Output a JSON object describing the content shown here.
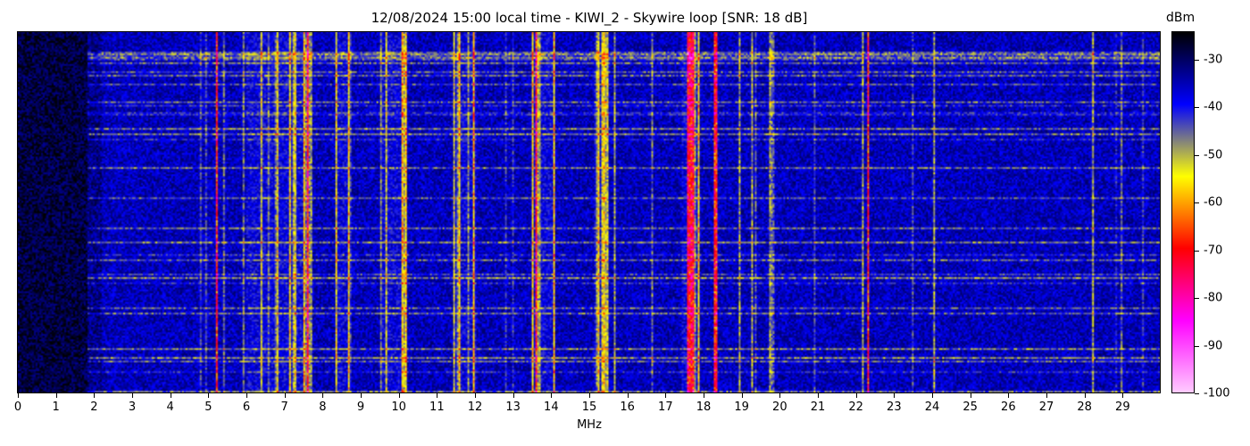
{
  "chart_data": {
    "type": "heatmap",
    "title": "12/08/2024 15:00 local time - KIWI_2 - Skywire loop [SNR: 18 dB]",
    "xlabel": "MHz",
    "xlim": [
      0,
      30
    ],
    "x_ticks": [
      "0",
      "1",
      "2",
      "3",
      "4",
      "5",
      "6",
      "7",
      "8",
      "9",
      "10",
      "11",
      "12",
      "13",
      "14",
      "15",
      "16",
      "17",
      "18",
      "19",
      "20",
      "21",
      "22",
      "23",
      "24",
      "25",
      "26",
      "27",
      "28",
      "29"
    ],
    "colorbar": {
      "label": "dBm",
      "range": [
        -100,
        -24
      ],
      "ticks": [
        "-30",
        "-40",
        "-50",
        "-60",
        "-70",
        "-80",
        "-90",
        "-100"
      ],
      "tick_values": [
        -30,
        -40,
        -50,
        -60,
        -70,
        -80,
        -90,
        -100
      ],
      "colors": [
        "#000000",
        "#0000ff",
        "#ffff00",
        "#ff0000",
        "#ff00ff",
        "#ffccff"
      ]
    },
    "strong_carriers_mhz": [
      5.2,
      7.6,
      13.6,
      17.6,
      17.7,
      18.3,
      22.3
    ],
    "active_bands_mhz": [
      [
        6.0,
        7.7
      ],
      [
        8.3,
        8.7
      ],
      [
        9.5,
        10.2
      ],
      [
        11.4,
        12.0
      ],
      [
        13.5,
        14.1
      ],
      [
        15.1,
        15.5
      ],
      [
        17.4,
        17.9
      ]
    ]
  }
}
